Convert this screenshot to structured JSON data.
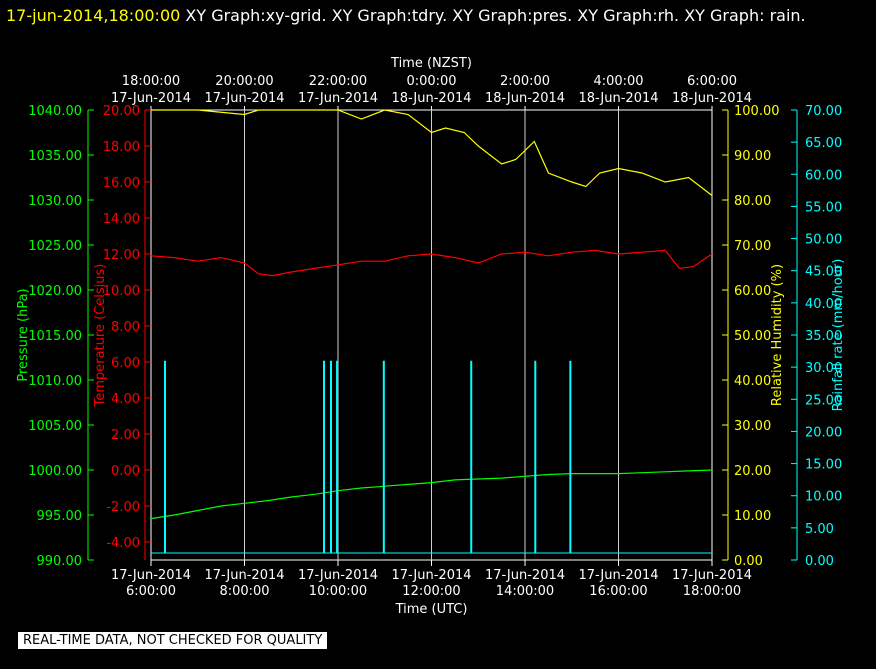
{
  "title": {
    "timestamp": "17-jun-2014,18:00:00",
    "rest": "  XY Graph:xy-grid.  XY Graph:tdry.  XY Graph:pres.  XY Graph:rh.  XY Graph: rain."
  },
  "disclaimer": "REAL-TIME DATA, NOT CHECKED FOR QUALITY",
  "colors": {
    "pressure": "#00ff00",
    "temperature": "#ff0000",
    "humidity": "#ffff00",
    "rain": "#00ffff",
    "grid": "#ffffff",
    "text": "#ffffff"
  },
  "chart_data": {
    "type": "line",
    "top_axis": {
      "title": "Time (NZST)",
      "ticks": [
        {
          "time": "18:00:00",
          "date": "17-Jun-2014"
        },
        {
          "time": "20:00:00",
          "date": "17-Jun-2014"
        },
        {
          "time": "22:00:00",
          "date": "17-Jun-2014"
        },
        {
          "time": "0:00:00",
          "date": "18-Jun-2014"
        },
        {
          "time": "2:00:00",
          "date": "18-Jun-2014"
        },
        {
          "time": "4:00:00",
          "date": "18-Jun-2014"
        },
        {
          "time": "6:00:00",
          "date": "18-Jun-2014"
        }
      ]
    },
    "bottom_axis": {
      "title": "Time (UTC)",
      "ticks": [
        {
          "date": "17-Jun-2014",
          "time": "6:00:00"
        },
        {
          "date": "17-Jun-2014",
          "time": "8:00:00"
        },
        {
          "date": "17-Jun-2014",
          "time": "10:00:00"
        },
        {
          "date": "17-Jun-2014",
          "time": "12:00:00"
        },
        {
          "date": "17-Jun-2014",
          "time": "14:00:00"
        },
        {
          "date": "17-Jun-2014",
          "time": "16:00:00"
        },
        {
          "date": "17-Jun-2014",
          "time": "18:00:00"
        }
      ],
      "range_hours_utc": [
        6,
        18
      ]
    },
    "y_axes": {
      "pressure": {
        "label": "Pressure (hPa)",
        "range": [
          990,
          1040
        ],
        "ticks": [
          "990.00",
          "995.00",
          "1000.00",
          "1005.00",
          "1010.00",
          "1015.00",
          "1020.00",
          "1025.00",
          "1030.00",
          "1035.00",
          "1040.00"
        ]
      },
      "temperature": {
        "label": "Temperature (Celsius)",
        "range": [
          -5,
          20
        ],
        "ticks": [
          "-4.00",
          "-2.00",
          "0.00",
          "2.00",
          "4.00",
          "6.00",
          "8.00",
          "10.00",
          "12.00",
          "14.00",
          "16.00",
          "18.00",
          "20.00"
        ]
      },
      "humidity": {
        "label": "Relative Humidity (%)",
        "range": [
          0,
          100
        ],
        "ticks": [
          "0.00",
          "10.00",
          "20.00",
          "30.00",
          "40.00",
          "50.00",
          "60.00",
          "70.00",
          "80.00",
          "90.00",
          "100.00"
        ]
      },
      "rain": {
        "label": "Rainfall rate (mm/hour)",
        "range": [
          0,
          70
        ],
        "ticks": [
          "0.00",
          "5.00",
          "10.00",
          "15.00",
          "20.00",
          "25.00",
          "30.00",
          "35.00",
          "40.00",
          "45.00",
          "50.00",
          "55.00",
          "60.00",
          "65.00",
          "70.00"
        ]
      }
    },
    "series": [
      {
        "name": "pres",
        "axis": "pressure",
        "x": [
          6.0,
          6.5,
          7.0,
          7.5,
          8.0,
          8.5,
          9.0,
          9.5,
          10.0,
          10.5,
          11.0,
          11.5,
          12.0,
          12.5,
          13.0,
          13.5,
          14.0,
          14.5,
          15.0,
          15.5,
          16.0,
          16.5,
          17.0,
          17.5,
          18.0
        ],
        "y": [
          994.6,
          995.0,
          995.5,
          996.0,
          996.3,
          996.6,
          997.0,
          997.3,
          997.7,
          998.0,
          998.2,
          998.4,
          998.6,
          998.9,
          999.0,
          999.1,
          999.3,
          999.5,
          999.6,
          999.6,
          999.6,
          999.7,
          999.8,
          999.9,
          1000.0
        ]
      },
      {
        "name": "tdry",
        "axis": "temperature",
        "x": [
          6.0,
          6.5,
          7.0,
          7.5,
          8.0,
          8.3,
          8.6,
          9.0,
          9.5,
          10.0,
          10.5,
          11.0,
          11.5,
          12.0,
          12.5,
          13.0,
          13.5,
          14.0,
          14.5,
          15.0,
          15.5,
          16.0,
          16.5,
          17.0,
          17.3,
          17.6,
          18.0
        ],
        "y": [
          11.9,
          11.8,
          11.6,
          11.8,
          11.5,
          10.9,
          10.8,
          11.0,
          11.2,
          11.4,
          11.6,
          11.6,
          11.9,
          12.0,
          11.8,
          11.5,
          12.0,
          12.1,
          11.9,
          12.1,
          12.2,
          12.0,
          12.1,
          12.2,
          11.2,
          11.3,
          12.0
        ]
      },
      {
        "name": "rh",
        "axis": "humidity",
        "x": [
          6.0,
          7.0,
          7.8,
          8.0,
          8.3,
          9.0,
          10.0,
          10.5,
          11.0,
          11.5,
          12.0,
          12.3,
          12.7,
          13.0,
          13.5,
          13.8,
          14.2,
          14.5,
          15.0,
          15.3,
          15.6,
          16.0,
          16.5,
          17.0,
          17.5,
          18.0
        ],
        "y": [
          100.0,
          100.0,
          99.2,
          99.0,
          100.0,
          100.0,
          100.0,
          98.0,
          100.0,
          99.0,
          95.0,
          96.0,
          95.0,
          92.0,
          88.0,
          89.0,
          93.0,
          86.0,
          84.0,
          83.0,
          86.0,
          87.0,
          86.0,
          84.0,
          85.0,
          81.0
        ]
      },
      {
        "name": "rain",
        "axis": "rain",
        "x": [
          6.3,
          9.7,
          9.85,
          9.98,
          10.98,
          12.85,
          14.22,
          14.97
        ],
        "y": [
          31.0,
          31.0,
          31.0,
          31.0,
          31.0,
          31.0,
          31.0,
          31.0
        ]
      }
    ],
    "grid": true
  }
}
